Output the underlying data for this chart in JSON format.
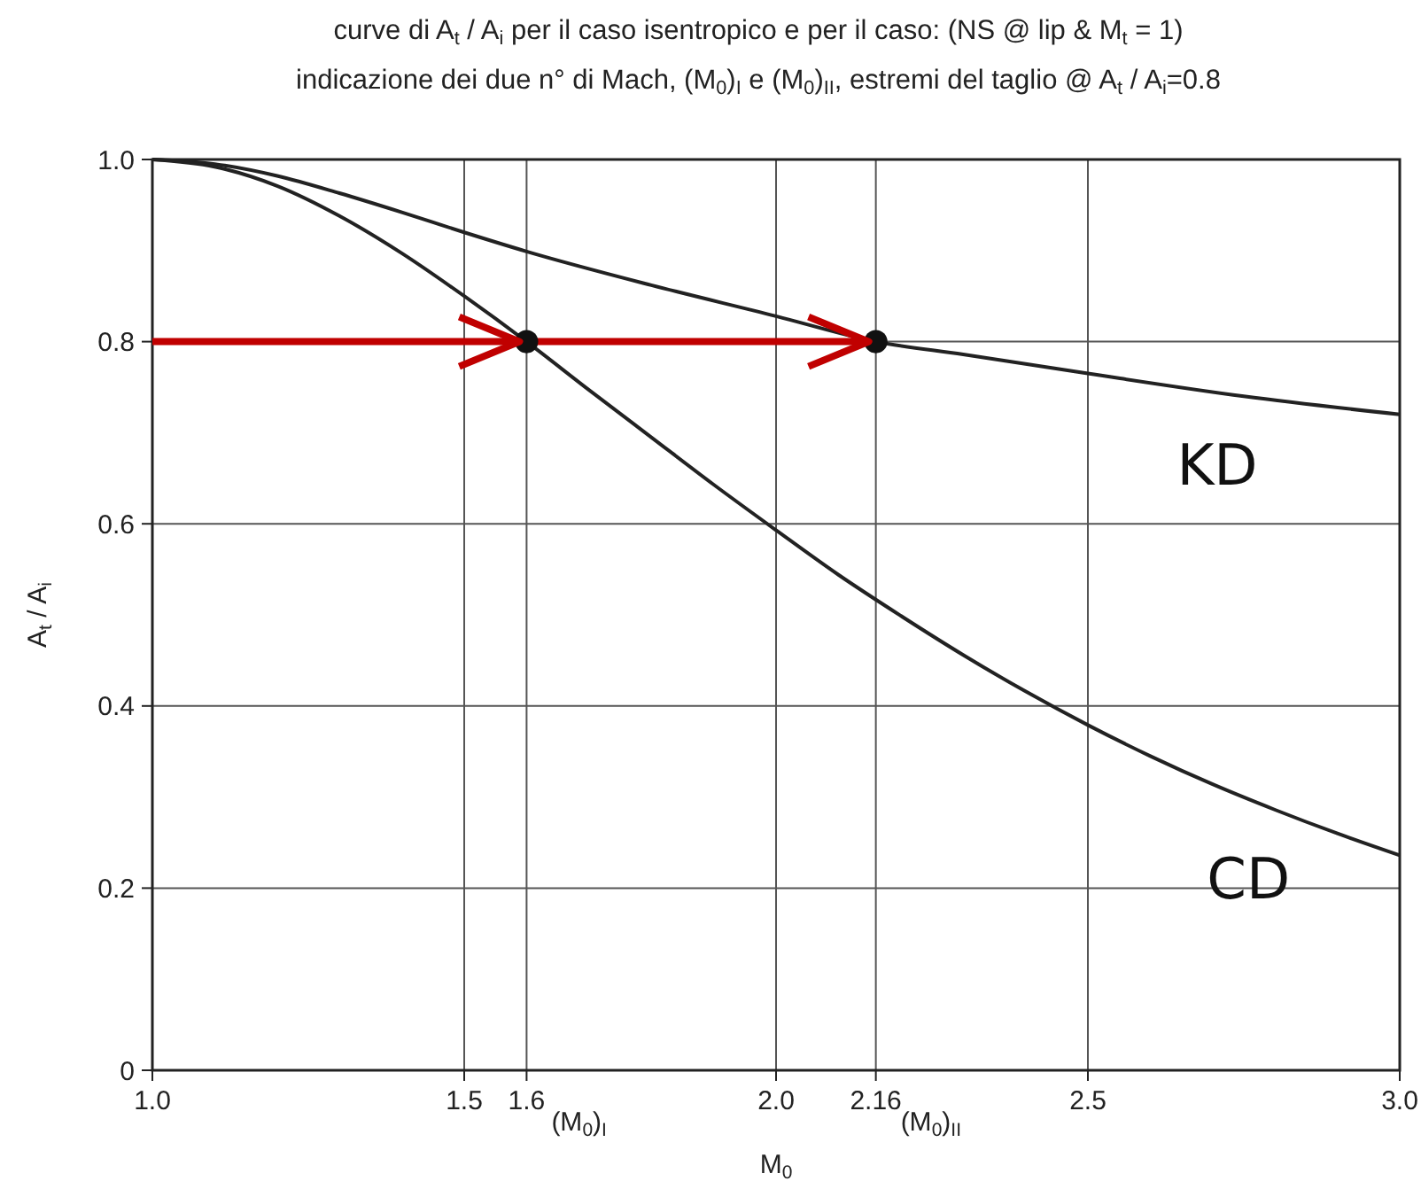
{
  "chart_data": {
    "type": "line",
    "title": "curve di A$_{t}$ / A$_{i}$ per il caso isentropico e per il caso: (NS @ lip & M$_{t}$ = 1)",
    "subtitle": "indicazione dei due n° di Mach, (M$_{0}$)$_{I}$ e (M$_{0}$)$_{II}$, estremi del taglio @ A$_{t}$ / A$_{i}$=0.8",
    "xlabel": "M$_{0}$",
    "ylabel": "A$_{t}$ / A$_{i}$",
    "xlim": [
      1.0,
      3.0
    ],
    "ylim": [
      0,
      1.0
    ],
    "xticks": [
      {
        "value": 1.0,
        "label": "1.0"
      },
      1.5,
      1.6,
      {
        "value": 2.0,
        "label": "2.0"
      },
      2.16,
      2.5,
      {
        "value": 3.0,
        "label": "3.0"
      }
    ],
    "yticks": [
      0,
      0.2,
      0.4,
      0.6,
      0.8,
      {
        "value": 1.0,
        "label": "1.0"
      }
    ],
    "grid": true,
    "marker": "none",
    "line_style": "solid",
    "series": [
      {
        "name": "KD",
        "color": "#222222",
        "x": [
          1.0,
          1.1,
          1.2,
          1.3,
          1.4,
          1.5,
          1.6,
          1.8,
          2.0,
          2.16,
          2.3,
          2.5,
          2.75,
          3.0
        ],
        "values": [
          1.0,
          0.995,
          0.982,
          0.963,
          0.942,
          0.92,
          0.899,
          0.862,
          0.828,
          0.8,
          0.786,
          0.765,
          0.74,
          0.72
        ]
      },
      {
        "name": "CD",
        "color": "#222222",
        "x": [
          1.0,
          1.1,
          1.2,
          1.3,
          1.4,
          1.5,
          1.6,
          1.7,
          1.8,
          1.9,
          2.0,
          2.1,
          2.2,
          2.3,
          2.4,
          2.5,
          2.6,
          2.7,
          2.8,
          2.9,
          3.0
        ],
        "values": [
          1.0,
          0.992,
          0.971,
          0.938,
          0.897,
          0.85,
          0.8,
          0.747,
          0.695,
          0.643,
          0.593,
          0.544,
          0.499,
          0.456,
          0.416,
          0.379,
          0.345,
          0.314,
          0.286,
          0.26,
          0.236
        ]
      },
      {
        "type": "line",
        "color": "#c00000",
        "x": [
          1.0,
          2.16
        ],
        "values": [
          0.8,
          0.8
        ]
      },
      {
        "type": "scatter",
        "marker": "circle",
        "color": "#111111",
        "x": [
          1.6,
          2.16
        ],
        "values": [
          0.8,
          0.8
        ]
      }
    ],
    "annotations": [
      "(M$_{0}$)$_{I}$",
      "(M$_{0}$)$_{II}$"
    ]
  }
}
